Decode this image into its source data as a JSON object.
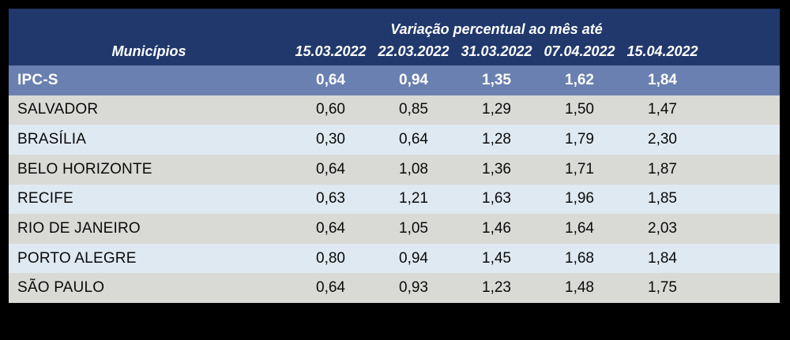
{
  "chart_data": {
    "type": "table",
    "title": "Variação percentual ao mês até",
    "row_header_label": "Municípios",
    "columns": [
      "15.03.2022",
      "22.03.2022",
      "31.03.2022",
      "07.04.2022",
      "15.04.2022"
    ],
    "summary_row": {
      "label": "IPC-S",
      "values": [
        "0,64",
        "0,94",
        "1,35",
        "1,62",
        "1,84"
      ]
    },
    "rows": [
      {
        "label": "SALVADOR",
        "values": [
          "0,60",
          "0,85",
          "1,29",
          "1,50",
          "1,47"
        ]
      },
      {
        "label": "BRASÍLIA",
        "values": [
          "0,30",
          "0,64",
          "1,28",
          "1,79",
          "2,30"
        ]
      },
      {
        "label": "BELO HORIZONTE",
        "values": [
          "0,64",
          "1,08",
          "1,36",
          "1,71",
          "1,87"
        ]
      },
      {
        "label": "RECIFE",
        "values": [
          "0,63",
          "1,21",
          "1,63",
          "1,96",
          "1,85"
        ]
      },
      {
        "label": "RIO DE JANEIRO",
        "values": [
          "0,64",
          "1,05",
          "1,46",
          "1,64",
          "2,03"
        ]
      },
      {
        "label": "PORTO ALEGRE",
        "values": [
          "0,80",
          "0,94",
          "1,45",
          "1,68",
          "1,84"
        ]
      },
      {
        "label": "SÃO PAULO",
        "values": [
          "0,64",
          "0,93",
          "1,23",
          "1,48",
          "1,75"
        ]
      }
    ],
    "layout": {
      "grid": "off",
      "legend": "none"
    }
  },
  "colors": {
    "page_background": "#000000",
    "header_bg": "#20386B",
    "summary_row_bg": "#6A80B0",
    "row_alt_gray": "#D9D9D6",
    "row_alt_blue": "#DFE9F1",
    "header_text": "#FFFFFF",
    "body_text": "#0A0A0A"
  }
}
